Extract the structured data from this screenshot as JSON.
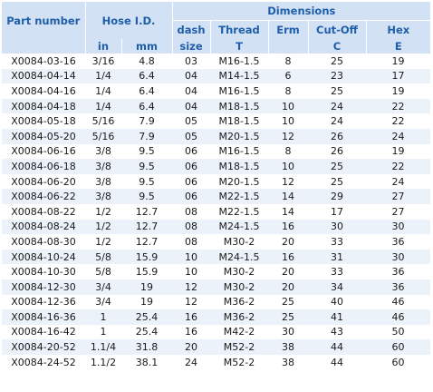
{
  "headers": {
    "part_number": "Part number",
    "hose_id": "Hose I.D.",
    "dimensions": "Dimensions",
    "dash": "dash",
    "thread": "Thread",
    "erm": "Erm",
    "cutoff": "Cut-Off",
    "hex": "Hex",
    "in": "in",
    "mm": "mm",
    "size": "size",
    "T": "T",
    "empty": "",
    "C": "C",
    "E": "E"
  },
  "rows": [
    [
      "X0084-03-16",
      "3/16",
      "4.8",
      "03",
      "M16-1.5",
      "8",
      "25",
      "19"
    ],
    [
      "X0084-04-14",
      "1/4",
      "6.4",
      "04",
      "M14-1.5",
      "6",
      "23",
      "17"
    ],
    [
      "X0084-04-16",
      "1/4",
      "6.4",
      "04",
      "M16-1.5",
      "8",
      "25",
      "19"
    ],
    [
      "X0084-04-18",
      "1/4",
      "6.4",
      "04",
      "M18-1.5",
      "10",
      "24",
      "22"
    ],
    [
      "X0084-05-18",
      "5/16",
      "7.9",
      "05",
      "M18-1.5",
      "10",
      "24",
      "22"
    ],
    [
      "X0084-05-20",
      "5/16",
      "7.9",
      "05",
      "M20-1.5",
      "12",
      "26",
      "24"
    ],
    [
      "X0084-06-16",
      "3/8",
      "9.5",
      "06",
      "M16-1.5",
      "8",
      "26",
      "19"
    ],
    [
      "X0084-06-18",
      "3/8",
      "9.5",
      "06",
      "M18-1.5",
      "10",
      "25",
      "22"
    ],
    [
      "X0084-06-20",
      "3/8",
      "9.5",
      "06",
      "M20-1.5",
      "12",
      "25",
      "24"
    ],
    [
      "X0084-06-22",
      "3/8",
      "9.5",
      "06",
      "M22-1.5",
      "14",
      "29",
      "27"
    ],
    [
      "X0084-08-22",
      "1/2",
      "12.7",
      "08",
      "M22-1.5",
      "14",
      "17",
      "27"
    ],
    [
      "X0084-08-24",
      "1/2",
      "12.7",
      "08",
      "M24-1.5",
      "16",
      "30",
      "30"
    ],
    [
      "X0084-08-30",
      "1/2",
      "12.7",
      "08",
      "M30-2",
      "20",
      "33",
      "36"
    ],
    [
      "X0084-10-24",
      "5/8",
      "15.9",
      "10",
      "M24-1.5",
      "16",
      "31",
      "30"
    ],
    [
      "X0084-10-30",
      "5/8",
      "15.9",
      "10",
      "M30-2",
      "20",
      "33",
      "36"
    ],
    [
      "X0084-12-30",
      "3/4",
      "19",
      "12",
      "M30-2",
      "20",
      "34",
      "36"
    ],
    [
      "X0084-12-36",
      "3/4",
      "19",
      "12",
      "M36-2",
      "25",
      "40",
      "46"
    ],
    [
      "X0084-16-36",
      "1",
      "25.4",
      "16",
      "M36-2",
      "25",
      "41",
      "46"
    ],
    [
      "X0084-16-42",
      "1",
      "25.4",
      "16",
      "M42-2",
      "30",
      "43",
      "50"
    ],
    [
      "X0084-20-52",
      "1.1/4",
      "31.8",
      "20",
      "M52-2",
      "38",
      "44",
      "60"
    ],
    [
      "X0084-24-52",
      "1.1/2",
      "38.1",
      "24",
      "M52-2",
      "38",
      "44",
      "60"
    ]
  ]
}
